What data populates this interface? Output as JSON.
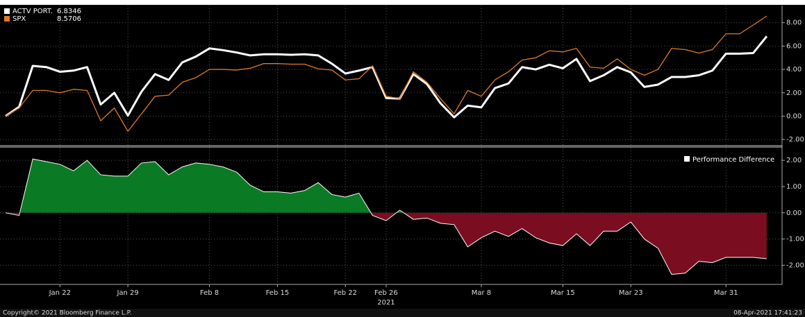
{
  "chart_data": [
    {
      "type": "line",
      "ylim": [
        -2.47,
        9.47
      ],
      "yticks": [
        {
          "value": 8,
          "label": "8.00"
        },
        {
          "value": 6,
          "label": "6.00"
        },
        {
          "value": 4,
          "label": "4.00"
        },
        {
          "value": 2,
          "label": "2.00"
        },
        {
          "value": 0,
          "label": "0.00"
        },
        {
          "value": -2,
          "label": "-2.00"
        }
      ],
      "grid": true,
      "legend": "top-left",
      "series": [
        {
          "name": "ACTV PORT.",
          "color": "#ffffff",
          "values": [
            0,
            0.8,
            4.3,
            4.2,
            3.8,
            3.9,
            4.2,
            1.0,
            2.0,
            0.05,
            2.1,
            3.6,
            3.1,
            4.6,
            5.1,
            5.8,
            5.65,
            5.45,
            5.2,
            5.3,
            5.3,
            5.25,
            5.3,
            5.2,
            4.5,
            3.65,
            3.9,
            4.2,
            1.55,
            1.5,
            3.6,
            2.75,
            1.1,
            -0.1,
            0.9,
            0.75,
            2.4,
            2.8,
            4.2,
            4.0,
            4.4,
            4.1,
            4.9,
            3.0,
            3.5,
            4.2,
            3.75,
            2.5,
            2.7,
            3.35,
            3.35,
            3.5,
            3.9,
            5.35,
            5.35,
            5.4,
            6.8346
          ]
        },
        {
          "name": "SPX",
          "color": "#e07b22",
          "values": [
            0,
            0.7,
            2.2,
            2.2,
            2.0,
            2.3,
            2.2,
            -0.4,
            0.7,
            -1.3,
            0.2,
            1.7,
            1.8,
            2.9,
            3.3,
            4.0,
            4.0,
            3.95,
            4.1,
            4.5,
            4.5,
            4.45,
            4.45,
            4.05,
            3.95,
            3.1,
            3.2,
            4.3,
            1.7,
            1.5,
            3.8,
            2.9,
            1.5,
            0.2,
            2.2,
            1.7,
            3.1,
            3.8,
            4.8,
            5.0,
            5.6,
            5.5,
            5.8,
            4.2,
            4.1,
            4.9,
            4.0,
            3.5,
            4.0,
            5.8,
            5.7,
            5.4,
            5.7,
            7.05,
            7.05,
            7.8,
            8.5706
          ]
        }
      ]
    },
    {
      "type": "area",
      "categories": [
        null,
        null,
        null,
        null,
        "Jan 22",
        null,
        null,
        null,
        null,
        "Jan 29",
        null,
        null,
        null,
        null,
        null,
        "Feb 8",
        null,
        null,
        null,
        null,
        "Feb 15",
        null,
        null,
        null,
        null,
        "Feb 22",
        null,
        null,
        "Feb 26",
        null,
        null,
        null,
        null,
        null,
        null,
        "Mar 8",
        null,
        null,
        null,
        null,
        null,
        "Mar 15",
        null,
        null,
        null,
        null,
        "Mar 23",
        null,
        null,
        null,
        null,
        null,
        null,
        "Mar 31",
        null,
        null,
        null
      ],
      "year_label": "2021",
      "ylim": [
        -2.73,
        2.48
      ],
      "yticks": [
        {
          "value": 2,
          "label": "2.00"
        },
        {
          "value": 1,
          "label": "1.00"
        },
        {
          "value": 0,
          "label": "0.00"
        },
        {
          "value": -1,
          "label": "-1.00"
        },
        {
          "value": -2,
          "label": "-2.00"
        }
      ],
      "grid": true,
      "legend": "top-right",
      "positive_color": "#0b7a24",
      "negative_color": "#7a0e20",
      "series": [
        {
          "name": "Performance Difference",
          "color": "#ffffff",
          "values": [
            0,
            -0.1,
            2.05,
            1.95,
            1.85,
            1.6,
            2.0,
            1.45,
            1.4,
            1.4,
            1.9,
            1.95,
            1.45,
            1.75,
            1.9,
            1.85,
            1.75,
            1.55,
            1.05,
            0.8,
            0.8,
            0.75,
            0.85,
            1.15,
            0.7,
            0.6,
            0.75,
            -0.1,
            -0.3,
            0.1,
            -0.25,
            -0.2,
            -0.4,
            -0.45,
            -1.3,
            -0.95,
            -0.7,
            -0.9,
            -0.6,
            -0.95,
            -1.15,
            -1.25,
            -0.8,
            -1.25,
            -0.7,
            -0.7,
            -0.35,
            -1.0,
            -1.35,
            -2.35,
            -2.3,
            -1.85,
            -1.9,
            -1.7,
            -1.7,
            -1.7,
            -1.75
          ]
        }
      ]
    }
  ],
  "footer": {
    "copyright": "Copyright© 2021 Bloomberg Finance L.P.",
    "timestamp": "08-Apr-2021 17:41:23"
  }
}
